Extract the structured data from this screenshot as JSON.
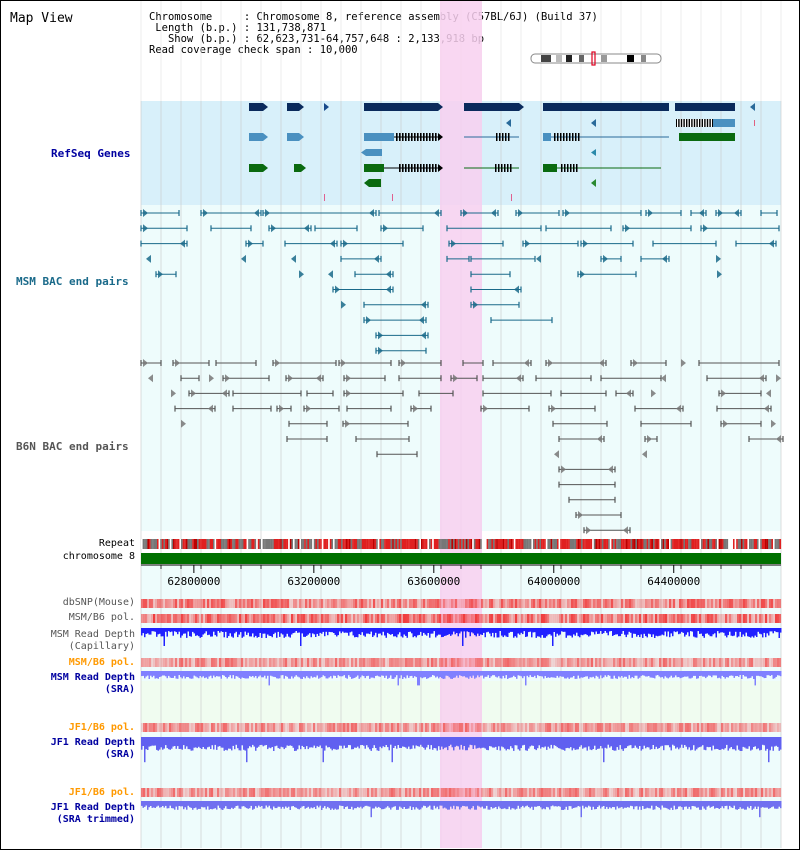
{
  "view_title": "Map View",
  "info": {
    "chromosome_label": "Chromosome",
    "chromosome_value": "Chromosome 8, reference assembly (C57BL/6J) (Build 37)",
    "length_label": "Length (b.p.)",
    "length_value": "131,738,871",
    "show_label": "Show (b.p.)",
    "show_value": "62,623,731-64,757,648 : 2,133,918 bp",
    "span_label": "Read coverage check span",
    "span_value": "10,000"
  },
  "tracks": {
    "refseq": "RefSeq Genes",
    "msm_bac": "MSM BAC end pairs",
    "b6n_bac": "B6N BAC end pairs",
    "repeat": "Repeat",
    "chromosome": "chromosome 8",
    "dbsnp": "dbSNP(Mouse)",
    "msm_b6_pol": "MSM/B6 pol.",
    "msm_read_depth_cap": "MSM Read Depth\n(Capillary)",
    "msm_b6_pol_2": "MSM/B6 pol.",
    "msm_read_depth_sra": "MSM Read Depth\n(SRA)",
    "jf1_b6_pol": "JF1/B6 pol.",
    "jf1_read_depth_sra": "JF1 Read Depth\n(SRA)",
    "jf1_b6_pol_2": "JF1/B6 pol.",
    "jf1_read_depth_trim": "JF1 Read Depth\n(SRA trimmed)"
  },
  "axis": {
    "type": "genomic-coordinate",
    "start_bp": 62623731,
    "end_bp": 64757648,
    "ticks": [
      62800000,
      63200000,
      63600000,
      64000000,
      64400000
    ],
    "tick_labels": [
      "62800000",
      "63200000",
      "63600000",
      "64000000",
      "64400000"
    ]
  },
  "colors": {
    "refseq_bg": "#d8f0fa",
    "bac_bg": "#eefcfc",
    "highlight": "#f8d0f0",
    "gene_navy": "#0a2a5c",
    "gene_blue": "#4a90c0",
    "gene_green": "#0a6a10",
    "msm_bac": "#1a6a8a",
    "b6n_bac": "#555555",
    "repeat_red": "#e02020",
    "chrom_green": "#007000",
    "msm_label": "#0000a0",
    "jf1_label": "#0000a0",
    "pol_orange": "#ff9900",
    "depth_blue": "#2020ff",
    "depth_light": "#8080ff"
  }
}
